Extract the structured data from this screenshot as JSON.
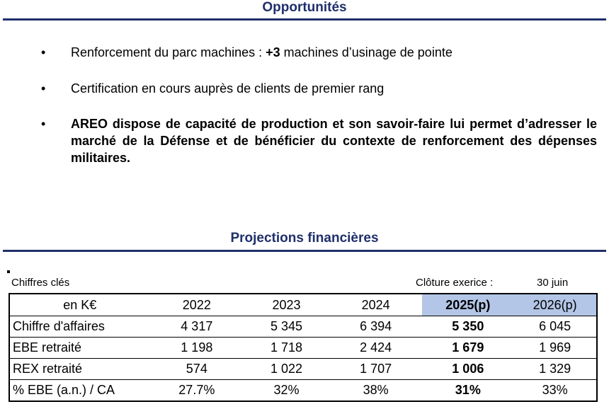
{
  "opportunities": {
    "title": "Opportunités",
    "bullet_symbol": "•",
    "items": [
      {
        "pre": "Renforcement du parc machines : ",
        "bold": "+3",
        "post": " machines d’usinage de pointe"
      },
      {
        "text": "Certification en cours auprès de clients de premier rang"
      },
      {
        "text": "AREO dispose de capacité de production et son savoir-faire lui permet d’adresser le marché de la Défense et de bénéficier du contexte de renforcement des dépenses militaires."
      }
    ]
  },
  "projections": {
    "title": "Projections financières",
    "chiffres_label": "Chiffres clés",
    "cloture_label": "Clôture exerice :",
    "cloture_value": "30 juin",
    "table": {
      "header": [
        "en K€",
        "2022",
        "2023",
        "2024",
        "2025(p)",
        "2026(p)"
      ],
      "rows": [
        [
          "Chiffre d'affaires",
          "4 317",
          "5 345",
          "6 394",
          "5 350",
          "6 045"
        ],
        [
          "EBE retraité",
          "1 198",
          "1 718",
          "2 424",
          "1 679",
          "1 969"
        ],
        [
          "REX retraité",
          "574",
          "1 022",
          "1 707",
          "1 006",
          "1 329"
        ],
        [
          "% EBE (a.n.) / CA",
          "27.7%",
          "32%",
          "38%",
          "31%",
          "33%"
        ]
      ]
    }
  },
  "colors": {
    "title": "#1f2f6b",
    "header_highlight": "#b4c6e7"
  }
}
